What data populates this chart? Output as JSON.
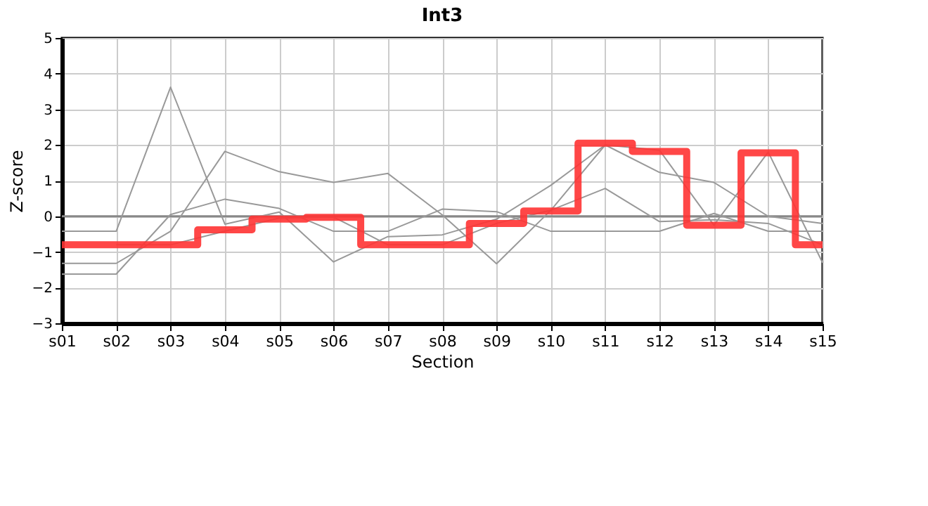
{
  "chart_data": {
    "type": "line",
    "title": "Int3",
    "xlabel": "Section",
    "ylabel": "Z-score",
    "categories": [
      "s01",
      "s02",
      "s03",
      "s04",
      "s05",
      "s06",
      "s07",
      "s08",
      "s09",
      "s10",
      "s11",
      "s12",
      "s13",
      "s14",
      "s15"
    ],
    "ylim": [
      -3,
      5
    ],
    "yticks": [
      -3,
      -2,
      -1,
      0,
      1,
      2,
      3,
      4,
      5
    ],
    "grid": true,
    "ref_lines": [
      {
        "axis": "y",
        "value": 0,
        "color": "#888888"
      }
    ],
    "series": [
      {
        "color": "#999999",
        "values": [
          -0.42,
          -0.42,
          3.62,
          -0.22,
          0.12,
          -1.28,
          -0.57,
          -0.52,
          -0.08,
          0.87,
          2.0,
          1.23,
          0.95,
          0.0,
          -0.2
        ]
      },
      {
        "color": "#999999",
        "values": [
          -1.32,
          -1.32,
          -0.42,
          1.82,
          1.25,
          0.95,
          1.2,
          0.04,
          -1.33,
          0.17,
          2.0,
          1.85,
          -0.25,
          1.8,
          -1.3
        ]
      },
      {
        "color": "#999999",
        "values": [
          -1.62,
          -1.62,
          0.05,
          0.48,
          0.22,
          -0.42,
          -0.42,
          0.2,
          0.13,
          -0.42,
          -0.42,
          -0.42,
          0.08,
          -0.42,
          -0.42
        ]
      },
      {
        "color": "#999999",
        "values": [
          null,
          -0.8,
          -0.8,
          -0.42,
          -0.05,
          -0.02,
          -0.8,
          -0.8,
          -0.2,
          0.17,
          0.78,
          -0.15,
          -0.1,
          -0.2,
          -0.8
        ]
      },
      {
        "type": "step",
        "color": "#ff3333",
        "values": [
          -0.8,
          -0.8,
          -0.8,
          -0.38,
          -0.08,
          -0.03,
          -0.8,
          -0.8,
          -0.2,
          0.15,
          2.05,
          1.82,
          -0.25,
          1.78,
          -0.8
        ]
      }
    ]
  }
}
